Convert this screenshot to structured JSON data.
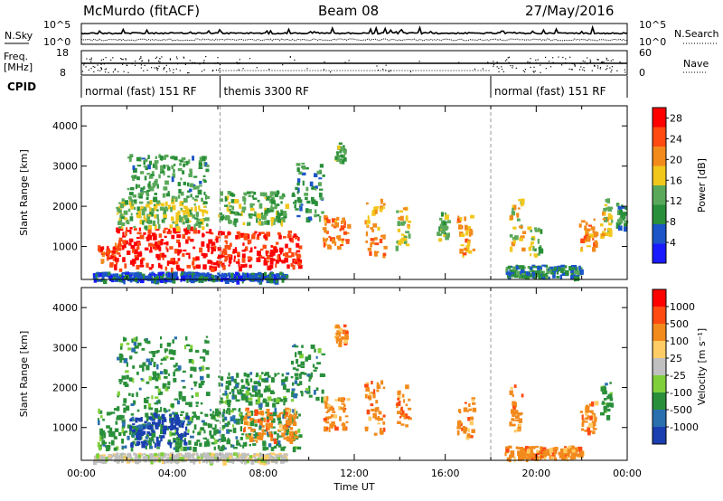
{
  "header": {
    "radar_title": "McMurdo (fitACF)",
    "beam": "Beam 08",
    "date": "27/May/2016"
  },
  "top_panels": {
    "nsky_label": "N.Sky",
    "nsearch_label": "N.Search",
    "sky_ticks": [
      "10^5",
      "10^0"
    ],
    "search_ticks": [
      "10^5",
      "10^0"
    ],
    "freq_label_line1": "Freq.",
    "freq_label_line2": "[MHz]",
    "freq_ticks": [
      "18",
      "8"
    ],
    "nave_label": "Nave",
    "nave_ticks": [
      "60",
      "0"
    ],
    "cpid_label": "CPID",
    "cpid_segments": [
      {
        "label": "normal (fast) 151 RF",
        "start_hour": 0,
        "end_hour": 6.1
      },
      {
        "label": "themis 3300 RF",
        "start_hour": 6.1,
        "end_hour": 18.0
      },
      {
        "label": "normal (fast) 151 RF",
        "start_hour": 18.0,
        "end_hour": 24
      }
    ]
  },
  "colors": {
    "power": [
      "#1a1aff",
      "#1b55c8",
      "#2a8f3a",
      "#5aa95a",
      "#f2c71c",
      "#f28a1c",
      "#ff4a12",
      "#ff0000"
    ],
    "velocity": [
      "#ff0000",
      "#ff4a12",
      "#f28a1c",
      "#ffcc66",
      "#c0c0c0",
      "#7fcf3a",
      "#2a8f3a",
      "#2a6fae",
      "#1a3fb0"
    ],
    "ground": "#b0b0b0"
  },
  "chart_data": [
    {
      "type": "heatmap",
      "name": "power",
      "ylabel": "Slant Range [km]",
      "ylim": [
        180,
        4500
      ],
      "xlim": [
        0,
        24
      ],
      "yticks": [
        "1000",
        "2000",
        "3000",
        "4000"
      ],
      "colorbar_label": "Power [dB]",
      "colorbar_ticks": [
        "4",
        "8",
        "12",
        "16",
        "20",
        "24",
        "28"
      ],
      "colorbar_range": [
        0,
        30
      ],
      "blobs": [
        {
          "t0": 0.7,
          "t1": 1.6,
          "r0": 550,
          "r1": 1100,
          "level": 25
        },
        {
          "t0": 1.4,
          "t1": 5.8,
          "r0": 450,
          "r1": 1500,
          "level": 28
        },
        {
          "t0": 5.8,
          "t1": 9.6,
          "r0": 500,
          "r1": 1400,
          "level": 27
        },
        {
          "t0": 1.5,
          "t1": 5.5,
          "r0": 1500,
          "r1": 2200,
          "level": 14
        },
        {
          "t0": 2.0,
          "t1": 5.5,
          "r0": 2200,
          "r1": 3300,
          "level": 11
        },
        {
          "t0": 6.0,
          "t1": 9.0,
          "r0": 1600,
          "r1": 2400,
          "level": 12
        },
        {
          "t0": 9.2,
          "t1": 10.6,
          "r0": 1700,
          "r1": 3100,
          "level": 10
        },
        {
          "t0": 10.6,
          "t1": 11.7,
          "r0": 1000,
          "r1": 1800,
          "level": 22
        },
        {
          "t0": 11.1,
          "t1": 11.6,
          "r0": 3100,
          "r1": 3600,
          "level": 12
        },
        {
          "t0": 12.4,
          "t1": 13.3,
          "r0": 800,
          "r1": 2200,
          "level": 20
        },
        {
          "t0": 13.8,
          "t1": 14.4,
          "r0": 1000,
          "r1": 2100,
          "level": 16
        },
        {
          "t0": 15.6,
          "t1": 16.1,
          "r0": 1200,
          "r1": 1900,
          "level": 12
        },
        {
          "t0": 16.5,
          "t1": 17.2,
          "r0": 800,
          "r1": 1800,
          "level": 20
        },
        {
          "t0": 18.8,
          "t1": 19.4,
          "r0": 900,
          "r1": 2200,
          "level": 17
        },
        {
          "t0": 19.6,
          "t1": 20.2,
          "r0": 800,
          "r1": 1500,
          "level": 14
        },
        {
          "t0": 21.8,
          "t1": 22.6,
          "r0": 900,
          "r1": 1700,
          "level": 20
        },
        {
          "t0": 22.8,
          "t1": 23.3,
          "r0": 1300,
          "r1": 2200,
          "level": 16
        },
        {
          "t0": 23.5,
          "t1": 23.9,
          "r0": 1500,
          "r1": 2100,
          "level": 10
        },
        {
          "t0": 18.6,
          "t1": 22.0,
          "r0": 250,
          "r1": 550,
          "level": 9
        },
        {
          "t0": 0.5,
          "t1": 9.0,
          "r0": 180,
          "r1": 380,
          "level": 6
        }
      ]
    },
    {
      "type": "heatmap",
      "name": "velocity",
      "ylabel": "Slant Range [km]",
      "ylim": [
        180,
        4500
      ],
      "xlim": [
        0,
        24
      ],
      "yticks": [
        "1000",
        "2000",
        "3000",
        "4000"
      ],
      "xticks": [
        "00:00",
        "04:00",
        "08:00",
        "12:00",
        "16:00",
        "20:00",
        "00:00"
      ],
      "xlabel": "Time UT",
      "colorbar_label": "Velocity [m s⁻¹]",
      "colorbar_ticks": [
        "1000",
        "500",
        "100",
        "25",
        "-25",
        "-100",
        "-500",
        "-1000"
      ],
      "blobs": [
        {
          "t0": 0.7,
          "t1": 6.1,
          "r0": 500,
          "r1": 1500,
          "level": 6
        },
        {
          "t0": 2.1,
          "t1": 4.6,
          "r0": 600,
          "r1": 1400,
          "level": 8
        },
        {
          "t0": 6.1,
          "t1": 9.6,
          "r0": 500,
          "r1": 1500,
          "level": 6
        },
        {
          "t0": 7.1,
          "t1": 9.4,
          "r0": 700,
          "r1": 1500,
          "level": 2
        },
        {
          "t0": 1.5,
          "t1": 5.5,
          "r0": 1500,
          "r1": 3300,
          "level": 6
        },
        {
          "t0": 6.0,
          "t1": 9.0,
          "r0": 1600,
          "r1": 2400,
          "level": 6
        },
        {
          "t0": 9.2,
          "t1": 10.6,
          "r0": 1700,
          "r1": 3100,
          "level": 6
        },
        {
          "t0": 10.6,
          "t1": 11.7,
          "r0": 1000,
          "r1": 1800,
          "level": 2
        },
        {
          "t0": 11.1,
          "t1": 11.6,
          "r0": 3100,
          "r1": 3600,
          "level": 2
        },
        {
          "t0": 12.4,
          "t1": 13.3,
          "r0": 800,
          "r1": 2200,
          "level": 2
        },
        {
          "t0": 13.8,
          "t1": 14.4,
          "r0": 1000,
          "r1": 2100,
          "level": 2
        },
        {
          "t0": 16.5,
          "t1": 17.2,
          "r0": 800,
          "r1": 1800,
          "level": 2
        },
        {
          "t0": 18.8,
          "t1": 19.4,
          "r0": 900,
          "r1": 2200,
          "level": 2
        },
        {
          "t0": 21.8,
          "t1": 22.6,
          "r0": 900,
          "r1": 1700,
          "level": 2
        },
        {
          "t0": 22.8,
          "t1": 23.3,
          "r0": 1300,
          "r1": 2200,
          "level": 6
        },
        {
          "t0": 18.6,
          "t1": 22.0,
          "r0": 250,
          "r1": 550,
          "level": 2
        },
        {
          "t0": 0.5,
          "t1": 9.0,
          "r0": 180,
          "r1": 380,
          "level": 4
        }
      ]
    }
  ]
}
